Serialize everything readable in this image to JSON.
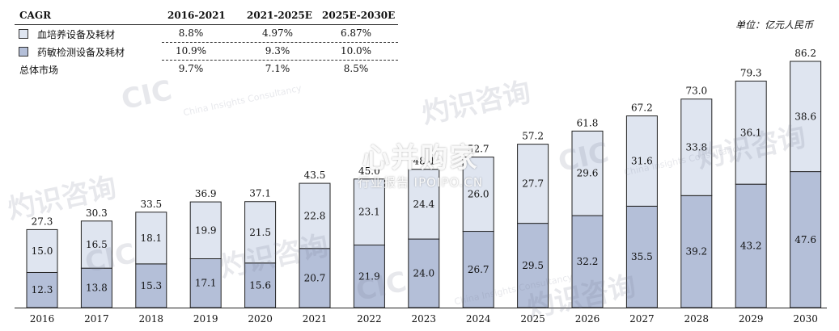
{
  "unit_label": "单位：亿元人民币",
  "cagr_table": {
    "header": [
      "CAGR",
      "2016-2021",
      "2021-2025E",
      "2025E-2030E"
    ],
    "rows": [
      {
        "label": "血培养设备及耗材",
        "values": [
          "8.8%",
          "4.97%",
          "6.87%"
        ]
      },
      {
        "label": "药敏检测设备及耗材",
        "values": [
          "10.9%",
          "9.3%",
          "10.0%"
        ]
      },
      {
        "label": "总体市场",
        "values": [
          "9.7%",
          "7.1%",
          "8.5%"
        ]
      }
    ]
  },
  "watermarks": {
    "cic_text": "CIC",
    "brand_cn": "灼识咨询",
    "brand_en": "China Insights Consultancy",
    "stamp_main": "心并购家",
    "stamp_sub": "行业报告 IPOIPO.CN"
  },
  "chart_data": {
    "type": "bar",
    "stacked": true,
    "categories": [
      "2016",
      "2017",
      "2018",
      "2019",
      "2020",
      "2021",
      "2022",
      "2023",
      "2024",
      "2025",
      "2026",
      "2027",
      "2028",
      "2029",
      "2030"
    ],
    "series": [
      {
        "name": "药敏检测设备及耗材",
        "color": "#b4bfd8",
        "values": [
          12.3,
          13.8,
          15.3,
          17.1,
          15.6,
          20.7,
          21.9,
          24.0,
          26.7,
          29.5,
          32.2,
          35.5,
          39.2,
          43.2,
          47.6
        ]
      },
      {
        "name": "血培养设备及耗材",
        "color": "#dfe5f0",
        "values": [
          15.0,
          16.5,
          18.1,
          19.9,
          21.5,
          22.8,
          23.1,
          24.4,
          26.0,
          27.7,
          29.6,
          31.6,
          33.8,
          36.1,
          38.6
        ]
      }
    ],
    "totals": [
      27.3,
      30.3,
      33.5,
      36.9,
      37.1,
      43.5,
      45.0,
      48.4,
      52.7,
      57.2,
      61.8,
      67.2,
      73.0,
      79.3,
      86.2
    ],
    "ylim": [
      0,
      90
    ],
    "grid": false,
    "legend": "top-left"
  }
}
